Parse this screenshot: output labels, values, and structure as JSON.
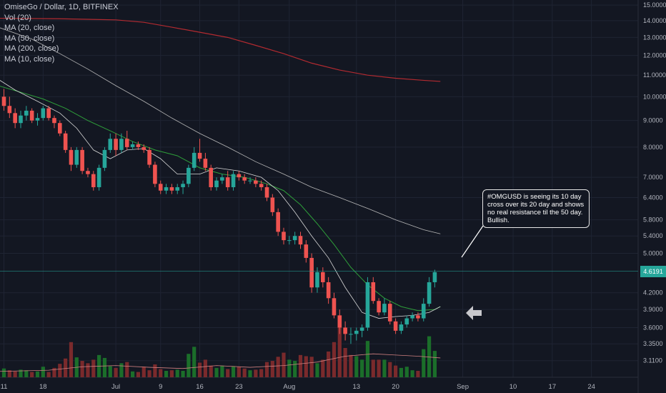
{
  "header": {
    "symbol": "OmiseGo / Dollar, 1D, BITFINEX",
    "indicators": [
      "Vol (20)",
      "MA (20, close)",
      "MA (50, close)",
      "MA (200, close)",
      "MA (10, close)"
    ]
  },
  "annotation": {
    "text": "#OMGUSD is seeing its 10 day cross over its 20 day and shows no real resistance til the 50 day. Bullish.",
    "arrow_icon": "left-arrow-icon"
  },
  "last_price": "4.6191",
  "colors": {
    "background": "#131722",
    "up": "#26a69a",
    "down": "#ef5350",
    "vol_up": "#1b6e2a",
    "vol_down": "#7a2a2c",
    "ma10": "#d8d8d8",
    "ma20": "#2e9e3a",
    "ma50": "#b8b8b8",
    "ma200": "#b22a30",
    "grid": "#1f2433",
    "price_line": "#26a69a"
  },
  "chart_data": {
    "type": "candlestick",
    "y_scale": "log",
    "ylim": [
      3.02,
      15.1
    ],
    "y_ticks": [
      "15.0000",
      "14.0000",
      "13.0000",
      "12.0000",
      "11.0000",
      "10.0000",
      "9.0000",
      "8.0000",
      "7.0000",
      "6.4000",
      "5.8000",
      "5.4000",
      "5.0000",
      "4.2000",
      "3.9000",
      "3.6000",
      "3.3500",
      "3.1100"
    ],
    "x_ticks": [
      {
        "label": "11",
        "day": 0
      },
      {
        "label": "18",
        "day": 7
      },
      {
        "label": "Jul",
        "day": 20
      },
      {
        "label": "9",
        "day": 28
      },
      {
        "label": "16",
        "day": 35
      },
      {
        "label": "23",
        "day": 42
      },
      {
        "label": "Aug",
        "day": 51
      },
      {
        "label": "13",
        "day": 63
      },
      {
        "label": "20",
        "day": 70
      },
      {
        "label": "Sep",
        "day": 82
      },
      {
        "label": "10",
        "day": 91
      },
      {
        "label": "17",
        "day": 98
      },
      {
        "label": "24",
        "day": 105
      }
    ],
    "candles": [
      [
        10.0,
        10.35,
        9.4,
        9.6
      ],
      [
        9.6,
        10.0,
        9.1,
        9.3
      ],
      [
        9.3,
        9.5,
        8.7,
        8.9
      ],
      [
        8.9,
        9.4,
        8.7,
        9.2
      ],
      [
        9.2,
        9.6,
        9.0,
        9.4
      ],
      [
        9.4,
        9.5,
        8.9,
        9.0
      ],
      [
        9.0,
        9.3,
        8.8,
        9.1
      ],
      [
        9.1,
        9.6,
        9.0,
        9.5
      ],
      [
        9.5,
        9.6,
        9.0,
        9.1
      ],
      [
        9.1,
        9.2,
        8.7,
        8.9
      ],
      [
        8.9,
        9.0,
        8.4,
        8.5
      ],
      [
        8.5,
        8.6,
        7.8,
        7.9
      ],
      [
        7.9,
        8.0,
        7.2,
        7.4
      ],
      [
        7.4,
        8.0,
        7.3,
        7.9
      ],
      [
        7.9,
        8.0,
        7.1,
        7.2
      ],
      [
        7.2,
        7.3,
        7.0,
        7.1
      ],
      [
        7.1,
        7.2,
        6.6,
        6.7
      ],
      [
        6.7,
        7.4,
        6.6,
        7.3
      ],
      [
        7.3,
        8.0,
        7.2,
        7.9
      ],
      [
        7.9,
        8.5,
        7.8,
        8.3
      ],
      [
        8.3,
        8.5,
        7.7,
        7.9
      ],
      [
        7.9,
        8.5,
        7.8,
        8.3
      ],
      [
        8.3,
        8.6,
        7.9,
        8.0
      ],
      [
        8.0,
        8.2,
        7.9,
        8.1
      ],
      [
        8.1,
        8.2,
        7.9,
        8.0
      ],
      [
        8.0,
        8.1,
        7.8,
        7.9
      ],
      [
        7.9,
        8.0,
        7.3,
        7.4
      ],
      [
        7.4,
        7.5,
        6.7,
        6.8
      ],
      [
        6.8,
        6.9,
        6.5,
        6.6
      ],
      [
        6.6,
        6.8,
        6.5,
        6.7
      ],
      [
        6.7,
        6.8,
        6.5,
        6.6
      ],
      [
        6.6,
        6.8,
        6.5,
        6.7
      ],
      [
        6.7,
        6.9,
        6.5,
        6.8
      ],
      [
        6.8,
        7.4,
        6.7,
        7.3
      ],
      [
        7.3,
        8.0,
        7.2,
        7.8
      ],
      [
        7.8,
        8.3,
        7.5,
        7.6
      ],
      [
        7.6,
        7.8,
        7.2,
        7.3
      ],
      [
        7.3,
        7.4,
        6.6,
        6.7
      ],
      [
        6.7,
        7.0,
        6.6,
        6.9
      ],
      [
        6.9,
        7.1,
        6.8,
        7.0
      ],
      [
        7.0,
        7.2,
        6.6,
        6.7
      ],
      [
        6.7,
        7.2,
        6.6,
        7.1
      ],
      [
        7.1,
        7.2,
        6.9,
        7.0
      ],
      [
        7.0,
        7.1,
        6.8,
        6.9
      ],
      [
        6.9,
        7.0,
        6.8,
        6.9
      ],
      [
        6.9,
        7.0,
        6.7,
        6.8
      ],
      [
        6.8,
        6.9,
        6.6,
        6.7
      ],
      [
        6.7,
        6.8,
        6.3,
        6.4
      ],
      [
        6.4,
        6.5,
        5.9,
        6.0
      ],
      [
        6.0,
        6.1,
        5.4,
        5.5
      ],
      [
        5.5,
        5.6,
        5.2,
        5.3
      ],
      [
        5.3,
        5.4,
        5.2,
        5.3
      ],
      [
        5.3,
        5.5,
        5.2,
        5.4
      ],
      [
        5.4,
        5.5,
        5.1,
        5.2
      ],
      [
        5.2,
        5.3,
        4.8,
        4.9
      ],
      [
        4.9,
        5.0,
        4.2,
        4.3
      ],
      [
        4.3,
        4.7,
        4.2,
        4.6
      ],
      [
        4.6,
        4.7,
        4.3,
        4.4
      ],
      [
        4.4,
        4.5,
        4.0,
        4.1
      ],
      [
        4.1,
        4.2,
        3.75,
        3.8
      ],
      [
        3.8,
        3.9,
        3.5,
        3.6
      ],
      [
        3.6,
        3.7,
        3.4,
        3.5
      ],
      [
        3.5,
        3.6,
        3.35,
        3.5
      ],
      [
        3.5,
        3.6,
        3.4,
        3.55
      ],
      [
        3.55,
        3.65,
        3.45,
        3.6
      ],
      [
        3.6,
        4.5,
        3.55,
        4.4
      ],
      [
        4.4,
        4.5,
        4.0,
        4.05
      ],
      [
        4.05,
        4.1,
        3.8,
        3.85
      ],
      [
        3.85,
        4.1,
        3.8,
        4.0
      ],
      [
        4.0,
        4.05,
        3.65,
        3.7
      ],
      [
        3.7,
        3.75,
        3.5,
        3.55
      ],
      [
        3.55,
        3.7,
        3.5,
        3.65
      ],
      [
        3.65,
        3.8,
        3.6,
        3.75
      ],
      [
        3.75,
        3.85,
        3.7,
        3.8
      ],
      [
        3.8,
        3.85,
        3.7,
        3.75
      ],
      [
        3.75,
        4.1,
        3.7,
        4.0
      ],
      [
        4.0,
        4.5,
        3.95,
        4.4
      ],
      [
        4.4,
        4.65,
        4.3,
        4.6
      ]
    ],
    "volume": [
      {
        "v": 0.15,
        "up": true
      },
      {
        "v": 0.12,
        "up": false
      },
      {
        "v": 0.1,
        "up": false
      },
      {
        "v": 0.13,
        "up": true
      },
      {
        "v": 0.12,
        "up": true
      },
      {
        "v": 0.09,
        "up": false
      },
      {
        "v": 0.1,
        "up": true
      },
      {
        "v": 0.18,
        "up": true
      },
      {
        "v": 0.09,
        "up": false
      },
      {
        "v": 0.16,
        "up": false
      },
      {
        "v": 0.23,
        "up": false
      },
      {
        "v": 0.32,
        "up": false
      },
      {
        "v": 0.6,
        "up": false
      },
      {
        "v": 0.34,
        "up": true
      },
      {
        "v": 0.28,
        "up": false
      },
      {
        "v": 0.24,
        "up": false
      },
      {
        "v": 0.3,
        "up": false
      },
      {
        "v": 0.38,
        "up": true
      },
      {
        "v": 0.33,
        "up": true
      },
      {
        "v": 0.19,
        "up": true
      },
      {
        "v": 0.16,
        "up": false
      },
      {
        "v": 0.24,
        "up": true
      },
      {
        "v": 0.26,
        "up": false
      },
      {
        "v": 0.1,
        "up": true
      },
      {
        "v": 0.09,
        "up": false
      },
      {
        "v": 0.18,
        "up": false
      },
      {
        "v": 0.12,
        "up": false
      },
      {
        "v": 0.22,
        "up": false
      },
      {
        "v": 0.14,
        "up": false
      },
      {
        "v": 0.11,
        "up": true
      },
      {
        "v": 0.12,
        "up": false
      },
      {
        "v": 0.13,
        "up": true
      },
      {
        "v": 0.11,
        "up": true
      },
      {
        "v": 0.4,
        "up": true
      },
      {
        "v": 0.52,
        "up": true
      },
      {
        "v": 0.25,
        "up": false
      },
      {
        "v": 0.3,
        "up": false
      },
      {
        "v": 0.2,
        "up": false
      },
      {
        "v": 0.16,
        "up": true
      },
      {
        "v": 0.2,
        "up": true
      },
      {
        "v": 0.14,
        "up": false
      },
      {
        "v": 0.19,
        "up": true
      },
      {
        "v": 0.18,
        "up": false
      },
      {
        "v": 0.15,
        "up": false
      },
      {
        "v": 0.12,
        "up": true
      },
      {
        "v": 0.13,
        "up": false
      },
      {
        "v": 0.14,
        "up": false
      },
      {
        "v": 0.26,
        "up": false
      },
      {
        "v": 0.28,
        "up": false
      },
      {
        "v": 0.35,
        "up": false
      },
      {
        "v": 0.42,
        "up": false
      },
      {
        "v": 0.3,
        "up": true
      },
      {
        "v": 0.28,
        "up": true
      },
      {
        "v": 0.38,
        "up": false
      },
      {
        "v": 0.36,
        "up": false
      },
      {
        "v": 0.35,
        "up": false
      },
      {
        "v": 0.24,
        "up": true
      },
      {
        "v": 0.3,
        "up": false
      },
      {
        "v": 0.44,
        "up": false
      },
      {
        "v": 0.6,
        "up": false
      },
      {
        "v": 1.0,
        "up": false
      },
      {
        "v": 0.5,
        "up": false
      },
      {
        "v": 0.38,
        "up": false
      },
      {
        "v": 0.36,
        "up": true
      },
      {
        "v": 0.3,
        "up": true
      },
      {
        "v": 0.62,
        "up": true
      },
      {
        "v": 0.3,
        "up": false
      },
      {
        "v": 0.3,
        "up": false
      },
      {
        "v": 0.3,
        "up": true
      },
      {
        "v": 0.26,
        "up": false
      },
      {
        "v": 0.2,
        "up": false
      },
      {
        "v": 0.16,
        "up": true
      },
      {
        "v": 0.18,
        "up": true
      },
      {
        "v": 0.12,
        "up": true
      },
      {
        "v": 0.11,
        "up": false
      },
      {
        "v": 0.48,
        "up": true
      },
      {
        "v": 0.7,
        "up": true
      },
      {
        "v": 0.45,
        "up": true
      }
    ],
    "ma10": [
      [
        -1,
        10.8
      ],
      [
        2,
        10.3
      ],
      [
        6,
        9.8
      ],
      [
        10,
        9.3
      ],
      [
        13,
        8.7
      ],
      [
        16,
        7.9
      ],
      [
        19,
        7.6
      ],
      [
        22,
        7.9
      ],
      [
        25,
        7.95
      ],
      [
        28,
        7.6
      ],
      [
        31,
        7.1
      ],
      [
        35,
        7.1
      ],
      [
        38,
        7.3
      ],
      [
        42,
        7.2
      ],
      [
        46,
        7.0
      ],
      [
        49,
        6.6
      ],
      [
        52,
        6.0
      ],
      [
        55,
        5.4
      ],
      [
        58,
        4.9
      ],
      [
        61,
        4.3
      ],
      [
        64,
        3.85
      ],
      [
        67,
        3.75
      ],
      [
        70,
        3.78
      ],
      [
        73,
        3.8
      ],
      [
        76,
        3.85
      ],
      [
        78,
        3.95
      ]
    ],
    "ma20": [
      [
        -1,
        10.5
      ],
      [
        3,
        10.2
      ],
      [
        7,
        9.9
      ],
      [
        11,
        9.5
      ],
      [
        15,
        9.0
      ],
      [
        19,
        8.6
      ],
      [
        23,
        8.2
      ],
      [
        27,
        7.9
      ],
      [
        31,
        7.7
      ],
      [
        35,
        7.3
      ],
      [
        39,
        7.1
      ],
      [
        43,
        7.0
      ],
      [
        47,
        6.8
      ],
      [
        50,
        6.6
      ],
      [
        53,
        6.2
      ],
      [
        56,
        5.7
      ],
      [
        59,
        5.2
      ],
      [
        62,
        4.7
      ],
      [
        65,
        4.35
      ],
      [
        68,
        4.1
      ],
      [
        71,
        3.95
      ],
      [
        74,
        3.88
      ],
      [
        77,
        3.9
      ],
      [
        78,
        3.95
      ]
    ],
    "ma50": [
      [
        -1,
        13.6
      ],
      [
        5,
        12.9
      ],
      [
        10,
        12.1
      ],
      [
        15,
        11.3
      ],
      [
        20,
        10.5
      ],
      [
        25,
        9.8
      ],
      [
        30,
        9.1
      ],
      [
        35,
        8.5
      ],
      [
        40,
        8.0
      ],
      [
        45,
        7.5
      ],
      [
        50,
        7.1
      ],
      [
        55,
        6.7
      ],
      [
        60,
        6.4
      ],
      [
        65,
        6.1
      ],
      [
        70,
        5.8
      ],
      [
        75,
        5.55
      ],
      [
        78,
        5.45
      ]
    ],
    "ma200": [
      [
        -1,
        14.15
      ],
      [
        10,
        14.12
      ],
      [
        20,
        14.05
      ],
      [
        25,
        13.9
      ],
      [
        30,
        13.6
      ],
      [
        35,
        13.3
      ],
      [
        40,
        13.0
      ],
      [
        45,
        12.55
      ],
      [
        50,
        12.1
      ],
      [
        55,
        11.6
      ],
      [
        60,
        11.25
      ],
      [
        65,
        11.0
      ],
      [
        70,
        10.85
      ],
      [
        75,
        10.75
      ],
      [
        78,
        10.7
      ]
    ],
    "vol_ma": [
      [
        -1,
        0.1
      ],
      [
        8,
        0.12
      ],
      [
        14,
        0.18
      ],
      [
        20,
        0.2
      ],
      [
        26,
        0.17
      ],
      [
        32,
        0.15
      ],
      [
        38,
        0.2
      ],
      [
        44,
        0.17
      ],
      [
        50,
        0.2
      ],
      [
        56,
        0.26
      ],
      [
        61,
        0.36
      ],
      [
        66,
        0.4
      ],
      [
        70,
        0.38
      ],
      [
        74,
        0.36
      ],
      [
        78,
        0.33
      ]
    ]
  }
}
